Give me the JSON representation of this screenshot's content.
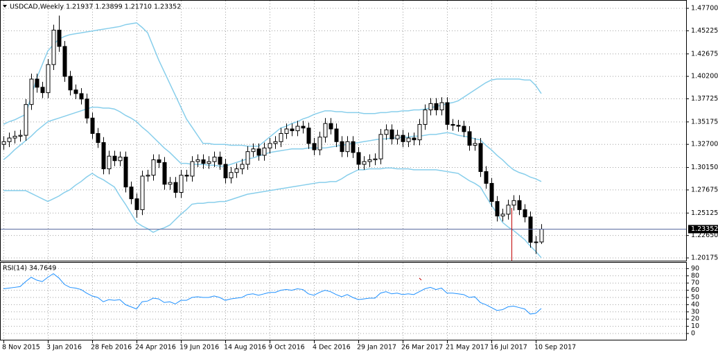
{
  "chart_data": [
    {
      "type": "candlestick",
      "title": "USDCAD,Weekly  1.21937 1.23899 1.21710 1.23352",
      "categories": [
        "8 Nov 2015",
        null,
        null,
        null,
        null,
        null,
        null,
        null,
        "3 Jan 2016",
        null,
        null,
        null,
        null,
        null,
        null,
        null,
        "28 Feb 2016",
        null,
        null,
        null,
        null,
        null,
        null,
        null,
        "24 Apr 2016",
        null,
        null,
        null,
        null,
        null,
        null,
        null,
        "19 Jun 2016",
        null,
        null,
        null,
        null,
        null,
        null,
        null,
        "14 Aug 2016",
        null,
        null,
        null,
        null,
        null,
        null,
        null,
        "9 Oct 2016",
        null,
        null,
        null,
        null,
        null,
        null,
        null,
        "4 Dec 2016",
        null,
        null,
        null,
        null,
        null,
        null,
        null,
        "29 Jan 2017",
        null,
        null,
        null,
        null,
        null,
        null,
        null,
        "26 Mar 2017",
        null,
        null,
        null,
        null,
        null,
        null,
        null,
        "21 May 2017",
        null,
        null,
        null,
        null,
        null,
        null,
        null,
        "16 Jul 2017",
        null,
        null,
        null,
        null,
        null,
        null,
        null,
        "10 Sep 2017",
        null
      ],
      "open": [
        1.327,
        1.33,
        1.334,
        1.336,
        1.337,
        1.371,
        1.399,
        1.39,
        1.384,
        1.415,
        1.453,
        1.435,
        1.402,
        1.387,
        1.383,
        1.377,
        1.356,
        1.339,
        1.329,
        1.3,
        1.314,
        1.309,
        1.313,
        1.28,
        1.267,
        1.255,
        1.292,
        1.293,
        1.31,
        1.307,
        1.283,
        1.285,
        1.274,
        1.293,
        1.292,
        1.308,
        1.31,
        1.306,
        1.308,
        1.313,
        1.305,
        1.29,
        1.296,
        1.3,
        1.305,
        1.319,
        1.322,
        1.315,
        1.323,
        1.328,
        1.33,
        1.339,
        1.344,
        1.342,
        1.347,
        1.345,
        1.328,
        1.321,
        1.335,
        1.35,
        1.344,
        1.33,
        1.319,
        1.33,
        1.318,
        1.305,
        1.308,
        1.31,
        1.311,
        1.338,
        1.343,
        1.333,
        1.337,
        1.33,
        1.334,
        1.332,
        1.349,
        1.365,
        1.372,
        1.365,
        1.373,
        1.349,
        1.348,
        1.347,
        1.341,
        1.326,
        1.328,
        1.297,
        1.284,
        1.264,
        1.248,
        1.25,
        1.26,
        1.265,
        1.255,
        1.247,
        1.219,
        1.21937
      ],
      "high": [
        1.336,
        1.34,
        1.342,
        1.343,
        1.377,
        1.405,
        1.405,
        1.396,
        1.421,
        1.459,
        1.469,
        1.441,
        1.408,
        1.393,
        1.389,
        1.383,
        1.362,
        1.345,
        1.335,
        1.32,
        1.32,
        1.319,
        1.319,
        1.286,
        1.273,
        1.298,
        1.299,
        1.316,
        1.316,
        1.313,
        1.291,
        1.291,
        1.299,
        1.299,
        1.314,
        1.316,
        1.316,
        1.314,
        1.319,
        1.319,
        1.311,
        1.302,
        1.306,
        1.311,
        1.325,
        1.328,
        1.328,
        1.329,
        1.334,
        1.336,
        1.345,
        1.35,
        1.35,
        1.353,
        1.353,
        1.351,
        1.334,
        1.341,
        1.356,
        1.356,
        1.35,
        1.336,
        1.336,
        1.336,
        1.324,
        1.314,
        1.316,
        1.317,
        1.344,
        1.349,
        1.349,
        1.343,
        1.343,
        1.34,
        1.34,
        1.355,
        1.371,
        1.378,
        1.378,
        1.379,
        1.379,
        1.355,
        1.354,
        1.353,
        1.347,
        1.334,
        1.334,
        1.303,
        1.29,
        1.27,
        1.256,
        1.266,
        1.271,
        1.271,
        1.261,
        1.253,
        1.226,
        1.23899
      ],
      "low": [
        1.321,
        1.324,
        1.328,
        1.33,
        1.331,
        1.365,
        1.384,
        1.378,
        1.378,
        1.409,
        1.429,
        1.396,
        1.381,
        1.377,
        1.371,
        1.35,
        1.333,
        1.323,
        1.294,
        1.294,
        1.303,
        1.303,
        1.274,
        1.261,
        1.246,
        1.249,
        1.286,
        1.287,
        1.301,
        1.277,
        1.277,
        1.268,
        1.268,
        1.286,
        1.286,
        1.302,
        1.3,
        1.3,
        1.302,
        1.299,
        1.284,
        1.284,
        1.29,
        1.294,
        1.299,
        1.313,
        1.309,
        1.309,
        1.317,
        1.322,
        1.324,
        1.333,
        1.336,
        1.336,
        1.339,
        1.322,
        1.315,
        1.315,
        1.329,
        1.338,
        1.324,
        1.313,
        1.313,
        1.312,
        1.299,
        1.299,
        1.302,
        1.304,
        1.305,
        1.332,
        1.327,
        1.327,
        1.324,
        1.324,
        1.326,
        1.326,
        1.343,
        1.359,
        1.359,
        1.359,
        1.343,
        1.342,
        1.341,
        1.335,
        1.32,
        1.32,
        1.291,
        1.278,
        1.258,
        1.242,
        1.242,
        1.244,
        1.254,
        1.249,
        1.241,
        1.213,
        1.2061,
        1.2171
      ],
      "close": [
        1.33,
        1.334,
        1.336,
        1.337,
        1.371,
        1.399,
        1.39,
        1.384,
        1.415,
        1.453,
        1.435,
        1.402,
        1.387,
        1.383,
        1.377,
        1.356,
        1.339,
        1.329,
        1.3,
        1.314,
        1.309,
        1.313,
        1.28,
        1.267,
        1.255,
        1.292,
        1.293,
        1.31,
        1.307,
        1.283,
        1.285,
        1.274,
        1.293,
        1.292,
        1.308,
        1.31,
        1.306,
        1.308,
        1.313,
        1.305,
        1.29,
        1.296,
        1.3,
        1.305,
        1.319,
        1.322,
        1.315,
        1.323,
        1.328,
        1.33,
        1.339,
        1.344,
        1.342,
        1.347,
        1.345,
        1.328,
        1.321,
        1.335,
        1.35,
        1.344,
        1.33,
        1.319,
        1.33,
        1.318,
        1.305,
        1.308,
        1.31,
        1.311,
        1.338,
        1.343,
        1.333,
        1.337,
        1.33,
        1.334,
        1.332,
        1.349,
        1.365,
        1.372,
        1.365,
        1.373,
        1.349,
        1.348,
        1.347,
        1.341,
        1.326,
        1.328,
        1.297,
        1.284,
        1.264,
        1.248,
        1.25,
        1.26,
        1.265,
        1.255,
        1.247,
        1.219,
        1.21937,
        1.23352
      ],
      "bands": {
        "color": "#87ceeb",
        "upper": [
          1.349,
          1.352,
          1.354,
          1.357,
          1.36,
          1.38,
          1.4,
          1.415,
          1.43,
          1.437,
          1.443,
          1.446,
          1.448,
          1.449,
          1.45,
          1.451,
          1.452,
          1.453,
          1.454,
          1.455,
          1.456,
          1.457,
          1.459,
          1.46,
          1.461,
          1.456,
          1.45,
          1.435,
          1.42,
          1.407,
          1.394,
          1.381,
          1.368,
          1.355,
          1.346,
          1.337,
          1.328,
          1.328,
          1.327,
          1.327,
          1.327,
          1.326,
          1.326,
          1.326,
          1.325,
          1.325,
          1.325,
          1.33,
          1.335,
          1.34,
          1.345,
          1.347,
          1.35,
          1.352,
          1.355,
          1.357,
          1.36,
          1.362,
          1.364,
          1.364,
          1.363,
          1.363,
          1.362,
          1.362,
          1.362,
          1.361,
          1.361,
          1.361,
          1.362,
          1.362,
          1.363,
          1.363,
          1.364,
          1.364,
          1.365,
          1.365,
          1.366,
          1.367,
          1.369,
          1.37,
          1.372,
          1.373,
          1.375,
          1.379,
          1.383,
          1.387,
          1.391,
          1.395,
          1.398,
          1.399,
          1.399,
          1.399,
          1.399,
          1.399,
          1.398,
          1.398,
          1.392,
          1.383
        ],
        "middle": [
          1.31,
          1.315,
          1.321,
          1.326,
          1.331,
          1.336,
          1.342,
          1.347,
          1.352,
          1.354,
          1.356,
          1.358,
          1.36,
          1.362,
          1.364,
          1.366,
          1.368,
          1.368,
          1.367,
          1.367,
          1.366,
          1.363,
          1.359,
          1.356,
          1.352,
          1.346,
          1.341,
          1.335,
          1.329,
          1.323,
          1.318,
          1.312,
          1.306,
          1.306,
          1.305,
          1.305,
          1.305,
          1.304,
          1.304,
          1.303,
          1.303,
          1.305,
          1.307,
          1.309,
          1.311,
          1.312,
          1.314,
          1.316,
          1.318,
          1.319,
          1.32,
          1.321,
          1.322,
          1.322,
          1.322,
          1.323,
          1.323,
          1.323,
          1.323,
          1.324,
          1.325,
          1.326,
          1.327,
          1.328,
          1.329,
          1.33,
          1.331,
          1.332,
          1.333,
          1.333,
          1.334,
          1.334,
          1.335,
          1.335,
          1.336,
          1.336,
          1.337,
          1.338,
          1.338,
          1.339,
          1.34,
          1.339,
          1.337,
          1.336,
          1.335,
          1.333,
          1.332,
          1.326,
          1.321,
          1.315,
          1.31,
          1.304,
          1.299,
          1.296,
          1.294,
          1.291,
          1.289,
          1.286
        ],
        "lower": [
          1.276,
          1.276,
          1.276,
          1.276,
          1.276,
          1.273,
          1.27,
          1.267,
          1.264,
          1.267,
          1.27,
          1.274,
          1.277,
          1.282,
          1.286,
          1.291,
          1.295,
          1.291,
          1.288,
          1.284,
          1.28,
          1.27,
          1.261,
          1.251,
          1.241,
          1.237,
          1.234,
          1.23,
          1.233,
          1.235,
          1.238,
          1.244,
          1.25,
          1.255,
          1.261,
          1.262,
          1.262,
          1.263,
          1.263,
          1.264,
          1.264,
          1.266,
          1.268,
          1.27,
          1.272,
          1.273,
          1.274,
          1.275,
          1.276,
          1.277,
          1.278,
          1.279,
          1.28,
          1.281,
          1.282,
          1.283,
          1.284,
          1.285,
          1.285,
          1.286,
          1.286,
          1.289,
          1.293,
          1.296,
          1.299,
          1.299,
          1.3,
          1.3,
          1.3,
          1.301,
          1.301,
          1.3,
          1.3,
          1.3,
          1.299,
          1.299,
          1.299,
          1.299,
          1.299,
          1.298,
          1.297,
          1.296,
          1.295,
          1.291,
          1.287,
          1.284,
          1.28,
          1.27,
          1.26,
          1.251,
          1.241,
          1.236,
          1.232,
          1.227,
          1.222,
          1.215,
          1.209,
          1.202
        ]
      },
      "up_color": "#ffffff",
      "down_color": "#000000",
      "ylim": [
        1.1987,
        1.4862
      ],
      "yticks": [
        {
          "value": 1.477,
          "label": "1.47700"
        },
        {
          "value": 1.45225,
          "label": "1.45225"
        },
        {
          "value": 1.42675,
          "label": "1.42675"
        },
        {
          "value": 1.402,
          "label": "1.40200"
        },
        {
          "value": 1.37725,
          "label": "1.37725"
        },
        {
          "value": 1.35175,
          "label": "1.35175"
        },
        {
          "value": 1.327,
          "label": "1.32700"
        },
        {
          "value": 1.3015,
          "label": "1.30150"
        },
        {
          "value": 1.27675,
          "label": "1.27675"
        },
        {
          "value": 1.25125,
          "label": "1.25125"
        },
        {
          "value": 1.2265,
          "label": "1.22650"
        },
        {
          "value": 1.20175,
          "label": "1.20175"
        }
      ],
      "last_price": {
        "value": 1.23352,
        "label": "1.23352"
      },
      "grid": true
    },
    {
      "type": "line",
      "title": "RSI(14) 34.7649",
      "values": [
        62,
        63,
        64,
        65,
        72,
        78,
        74,
        72,
        78,
        83,
        77,
        68,
        64,
        63,
        61,
        56,
        52,
        50,
        44,
        47,
        46,
        47,
        40,
        37,
        34,
        44,
        45,
        49,
        48,
        43,
        44,
        41,
        46,
        46,
        50,
        51,
        50,
        50,
        52,
        50,
        46,
        48,
        49,
        50,
        54,
        55,
        53,
        55,
        57,
        57,
        60,
        61,
        60,
        62,
        61,
        55,
        53,
        57,
        60,
        58,
        54,
        51,
        54,
        50,
        47,
        48,
        49,
        49,
        56,
        58,
        55,
        56,
        54,
        55,
        54,
        58,
        62,
        64,
        61,
        63,
        56,
        56,
        55,
        54,
        50,
        51,
        43,
        40,
        36,
        32,
        33,
        37,
        38,
        36,
        34,
        27,
        28,
        34.7649
      ],
      "color": "#1e90ff",
      "ylim": [
        0,
        100
      ],
      "yticks": [
        90,
        80,
        70,
        60,
        50,
        40,
        30,
        20,
        10,
        0
      ],
      "grid": true
    }
  ]
}
